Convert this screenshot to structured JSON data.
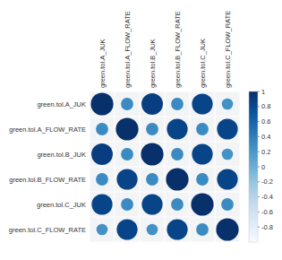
{
  "chart_data": {
    "type": "heatmap",
    "marker": "circle",
    "categories": [
      "green.tol.A_JUK",
      "green.tol.A_FLOW_RATE",
      "green.tol.B_JUK",
      "green.tol.B_FLOW_RATE",
      "green.tol.C_JUK",
      "green.tol.C_FLOW_RATE"
    ],
    "values": [
      [
        1.0,
        0.3,
        0.9,
        0.3,
        0.85,
        0.25
      ],
      [
        0.3,
        1.0,
        0.3,
        0.85,
        0.3,
        0.85
      ],
      [
        0.9,
        0.3,
        1.0,
        0.3,
        0.85,
        0.25
      ],
      [
        0.3,
        0.85,
        0.3,
        1.0,
        0.3,
        0.85
      ],
      [
        0.85,
        0.3,
        0.85,
        0.3,
        1.0,
        0.3
      ],
      [
        0.25,
        0.85,
        0.25,
        0.85,
        0.3,
        1.0
      ]
    ],
    "color_range": [
      -1,
      1
    ],
    "color_ticks": [
      1,
      0.8,
      0.6,
      0.4,
      0.2,
      0,
      -0.2,
      -0.4,
      -0.6,
      -0.8
    ]
  }
}
